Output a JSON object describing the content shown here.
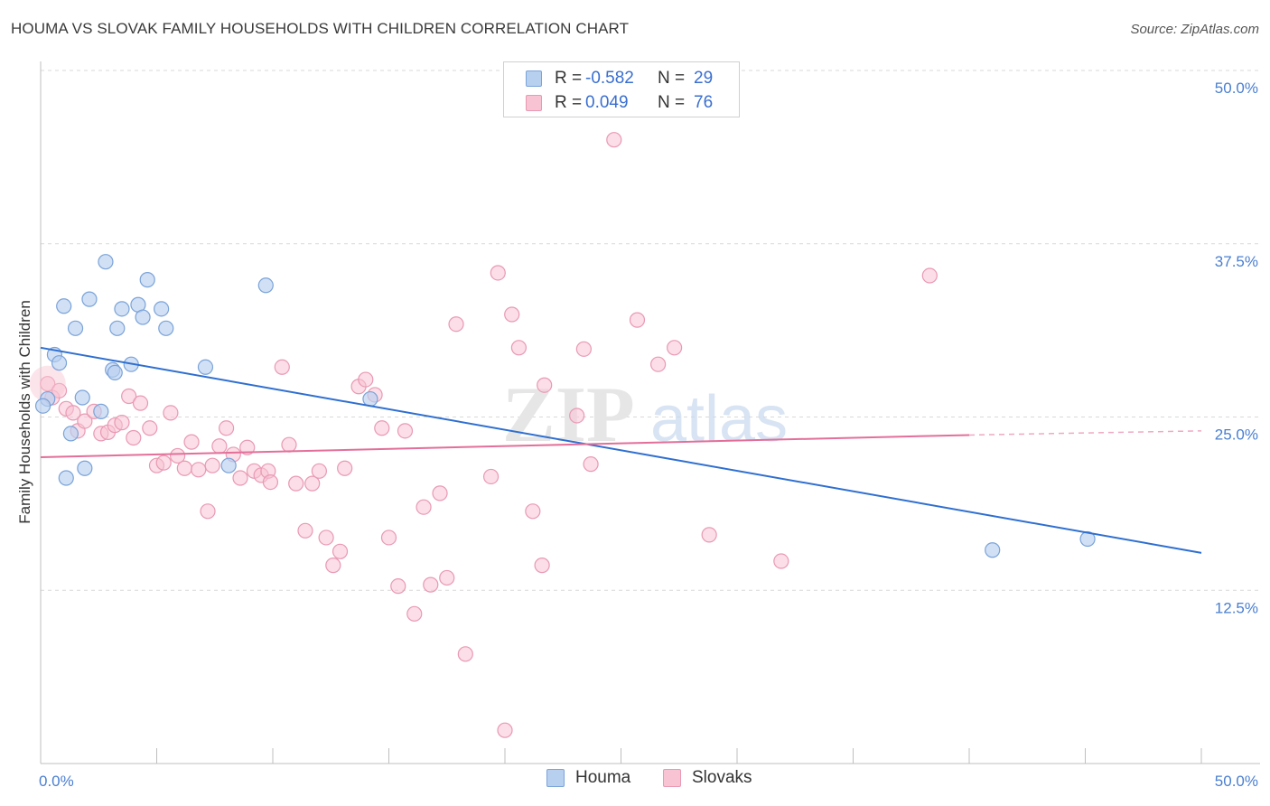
{
  "title": "HOUMA VS SLOVAK FAMILY HOUSEHOLDS WITH CHILDREN CORRELATION CHART",
  "source": "Source: ZipAtlas.com",
  "watermark": {
    "zip": "ZIP",
    "atlas": "atlas"
  },
  "legend_top": {
    "rows": [
      {
        "r_label": "R =",
        "r_value": "-0.582",
        "n_label": "N =",
        "n_value": "29"
      },
      {
        "r_label": "R =",
        "r_value": "0.049",
        "n_label": "N =",
        "n_value": "76"
      }
    ]
  },
  "legend_bottom": {
    "houma": "Houma",
    "slovaks": "Slovaks"
  },
  "colors": {
    "houma_fill": "#b8d0f0",
    "houma_stroke": "#7aa3d8",
    "houma_line": "#2f6fd0",
    "slovak_fill": "#f8c3d3",
    "slovak_stroke": "#e999b3",
    "slovak_line": "#e36f99",
    "tick_label": "#4a7fd0",
    "grid": "#d9d9d9"
  },
  "chart_data": {
    "type": "scatter",
    "title": "HOUMA VS SLOVAK FAMILY HOUSEHOLDS WITH CHILDREN CORRELATION CHART",
    "xlabel": "",
    "ylabel": "Family Households with Children",
    "xlim": [
      0,
      50
    ],
    "ylim": [
      0,
      50
    ],
    "x_tick_labels": [
      "0.0%",
      "50.0%"
    ],
    "y_ticks": [
      12.5,
      25.0,
      37.5,
      50.0
    ],
    "y_tick_labels": [
      "12.5%",
      "25.0%",
      "37.5%",
      "50.0%"
    ],
    "grid": true,
    "legend_position": "top-center",
    "series": [
      {
        "name": "Houma",
        "r": -0.582,
        "n": 29,
        "points": [
          [
            0.3,
            26.3
          ],
          [
            0.6,
            29.5
          ],
          [
            0.8,
            28.9
          ],
          [
            1.0,
            33.0
          ],
          [
            1.1,
            20.6
          ],
          [
            1.3,
            23.8
          ],
          [
            1.5,
            31.4
          ],
          [
            1.8,
            26.4
          ],
          [
            1.9,
            21.3
          ],
          [
            2.1,
            33.5
          ],
          [
            2.6,
            25.4
          ],
          [
            2.8,
            36.2
          ],
          [
            3.1,
            28.4
          ],
          [
            3.2,
            28.2
          ],
          [
            3.3,
            31.4
          ],
          [
            3.5,
            32.8
          ],
          [
            3.9,
            28.8
          ],
          [
            4.2,
            33.1
          ],
          [
            4.4,
            32.2
          ],
          [
            4.6,
            34.9
          ],
          [
            5.2,
            32.8
          ],
          [
            5.4,
            31.4
          ],
          [
            7.1,
            28.6
          ],
          [
            8.1,
            21.5
          ],
          [
            9.7,
            34.5
          ],
          [
            14.2,
            26.3
          ],
          [
            41.0,
            15.4
          ],
          [
            45.1,
            16.2
          ],
          [
            0.1,
            25.8
          ]
        ],
        "trend": {
          "x": [
            0,
            50
          ],
          "y": [
            30.0,
            15.2
          ]
        }
      },
      {
        "name": "Slovaks",
        "r": 0.049,
        "n": 76,
        "points": [
          [
            0.3,
            27.4
          ],
          [
            0.5,
            26.4
          ],
          [
            0.8,
            26.9
          ],
          [
            1.1,
            25.6
          ],
          [
            1.4,
            25.3
          ],
          [
            1.6,
            24.0
          ],
          [
            1.9,
            24.7
          ],
          [
            2.3,
            25.4
          ],
          [
            2.6,
            23.8
          ],
          [
            2.9,
            23.9
          ],
          [
            3.2,
            24.4
          ],
          [
            3.5,
            24.6
          ],
          [
            3.8,
            26.5
          ],
          [
            4.0,
            23.5
          ],
          [
            4.3,
            26.0
          ],
          [
            4.7,
            24.2
          ],
          [
            5.0,
            21.5
          ],
          [
            5.3,
            21.7
          ],
          [
            5.6,
            25.3
          ],
          [
            5.9,
            22.2
          ],
          [
            6.2,
            21.3
          ],
          [
            6.5,
            23.2
          ],
          [
            6.8,
            21.2
          ],
          [
            7.2,
            18.2
          ],
          [
            7.4,
            21.5
          ],
          [
            7.7,
            22.9
          ],
          [
            8.0,
            24.2
          ],
          [
            8.3,
            22.3
          ],
          [
            8.6,
            20.6
          ],
          [
            8.9,
            22.8
          ],
          [
            9.2,
            21.1
          ],
          [
            9.5,
            20.8
          ],
          [
            9.8,
            21.1
          ],
          [
            9.9,
            20.3
          ],
          [
            10.4,
            28.6
          ],
          [
            10.7,
            23.0
          ],
          [
            11.0,
            20.2
          ],
          [
            11.4,
            16.8
          ],
          [
            11.7,
            20.2
          ],
          [
            12.0,
            21.1
          ],
          [
            12.3,
            16.3
          ],
          [
            12.6,
            14.3
          ],
          [
            12.9,
            15.3
          ],
          [
            13.1,
            21.3
          ],
          [
            13.7,
            27.2
          ],
          [
            14.0,
            27.7
          ],
          [
            14.4,
            26.6
          ],
          [
            14.7,
            24.2
          ],
          [
            15.0,
            16.3
          ],
          [
            15.4,
            12.8
          ],
          [
            15.7,
            24.0
          ],
          [
            16.1,
            10.8
          ],
          [
            16.5,
            18.5
          ],
          [
            16.8,
            12.9
          ],
          [
            17.2,
            19.5
          ],
          [
            17.5,
            13.4
          ],
          [
            17.9,
            31.7
          ],
          [
            18.3,
            7.9
          ],
          [
            19.4,
            20.7
          ],
          [
            19.7,
            35.4
          ],
          [
            20.0,
            2.4
          ],
          [
            20.3,
            32.4
          ],
          [
            20.6,
            30.0
          ],
          [
            21.2,
            18.2
          ],
          [
            21.6,
            14.3
          ],
          [
            21.7,
            27.3
          ],
          [
            23.1,
            25.1
          ],
          [
            23.4,
            29.9
          ],
          [
            23.7,
            21.6
          ],
          [
            24.7,
            45.0
          ],
          [
            25.7,
            32.0
          ],
          [
            26.6,
            28.8
          ],
          [
            27.3,
            30.0
          ],
          [
            28.8,
            16.5
          ],
          [
            31.9,
            14.6
          ],
          [
            38.3,
            35.2
          ]
        ],
        "trend": {
          "x": [
            0,
            40
          ],
          "y": [
            22.1,
            23.7
          ],
          "dashed_to": [
            50,
            24.0
          ]
        }
      }
    ]
  }
}
